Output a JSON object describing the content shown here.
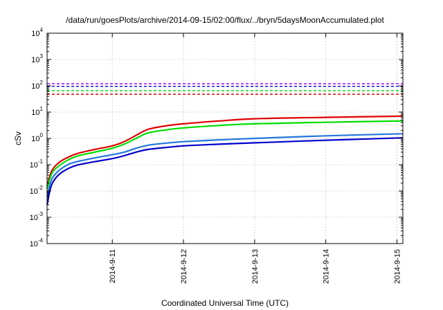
{
  "chart_data": {
    "type": "line",
    "title": "/data/run/goesPlots/archive/2014-09-15/02:00/flux/../bryn/5daysMoonAccumulated.plot",
    "xlabel": "Coordinated Universal Time (UTC)",
    "ylabel": "cSv",
    "yscale": "log",
    "ylim": [
      0.0001,
      10000
    ],
    "xlim": [
      "2014-09-10 02:00",
      "2014-09-15 02:00"
    ],
    "y_ticks": [
      {
        "base": "10",
        "exp": "-4"
      },
      {
        "base": "10",
        "exp": "-3"
      },
      {
        "base": "10",
        "exp": "-2"
      },
      {
        "base": "10",
        "exp": "-1"
      },
      {
        "base": "10",
        "exp": "0"
      },
      {
        "base": "10",
        "exp": "1"
      },
      {
        "base": "10",
        "exp": "2"
      },
      {
        "base": "10",
        "exp": "3"
      },
      {
        "base": "10",
        "exp": "4"
      }
    ],
    "x_ticks": [
      "2014-9-11",
      "2014-9-12",
      "2014-9-13",
      "2014-9-14",
      "2014-9-15"
    ],
    "grid": true,
    "thresholds": [
      {
        "color": "#a000ff",
        "value": 120
      },
      {
        "color": "#0000cc",
        "value": 95
      },
      {
        "color": "#00cc00",
        "value": 65
      },
      {
        "color": "#e00000",
        "value": 48
      }
    ],
    "series": [
      {
        "color": "#e00000",
        "x": [
          "2014-09-10 02:00",
          "2014-09-10 03:00",
          "2014-09-10 04:00",
          "2014-09-10 06:00",
          "2014-09-10 09:00",
          "2014-09-10 12:00",
          "2014-09-10 18:00",
          "2014-09-11 00:00",
          "2014-09-11 04:00",
          "2014-09-11 08:00",
          "2014-09-11 12:00",
          "2014-09-11 18:00",
          "2014-09-12 00:00",
          "2014-09-12 12:00",
          "2014-09-13 00:00",
          "2014-09-14 00:00",
          "2014-09-15 02:00"
        ],
        "values": [
          0.015,
          0.04,
          0.07,
          0.12,
          0.19,
          0.26,
          0.38,
          0.52,
          0.75,
          1.3,
          2.2,
          3.0,
          3.6,
          4.6,
          5.6,
          6.3,
          7.0
        ]
      },
      {
        "color": "#00dd00",
        "x": [
          "2014-09-10 02:00",
          "2014-09-10 03:00",
          "2014-09-10 04:00",
          "2014-09-10 06:00",
          "2014-09-10 09:00",
          "2014-09-10 12:00",
          "2014-09-10 18:00",
          "2014-09-11 00:00",
          "2014-09-11 04:00",
          "2014-09-11 08:00",
          "2014-09-11 12:00",
          "2014-09-11 18:00",
          "2014-09-12 00:00",
          "2014-09-12 12:00",
          "2014-09-13 00:00",
          "2014-09-14 00:00",
          "2014-09-15 02:00"
        ],
        "values": [
          0.012,
          0.03,
          0.055,
          0.09,
          0.15,
          0.21,
          0.3,
          0.42,
          0.6,
          1.0,
          1.6,
          2.1,
          2.5,
          3.1,
          3.6,
          4.1,
          4.6
        ]
      },
      {
        "color": "#2277dd",
        "x": [
          "2014-09-10 02:00",
          "2014-09-10 03:00",
          "2014-09-10 04:00",
          "2014-09-10 06:00",
          "2014-09-10 09:00",
          "2014-09-10 12:00",
          "2014-09-10 18:00",
          "2014-09-11 00:00",
          "2014-09-11 04:00",
          "2014-09-11 08:00",
          "2014-09-11 12:00",
          "2014-09-11 18:00",
          "2014-09-12 00:00",
          "2014-09-12 12:00",
          "2014-09-13 00:00",
          "2014-09-14 00:00",
          "2014-09-15 02:00"
        ],
        "values": [
          0.006,
          0.018,
          0.034,
          0.06,
          0.1,
          0.13,
          0.18,
          0.24,
          0.3,
          0.42,
          0.55,
          0.66,
          0.75,
          0.88,
          1.0,
          1.25,
          1.5
        ]
      },
      {
        "color": "#0000cc",
        "x": [
          "2014-09-10 02:00",
          "2014-09-10 03:00",
          "2014-09-10 04:00",
          "2014-09-10 06:00",
          "2014-09-10 09:00",
          "2014-09-10 12:00",
          "2014-09-10 18:00",
          "2014-09-11 00:00",
          "2014-09-11 04:00",
          "2014-09-11 08:00",
          "2014-09-11 12:00",
          "2014-09-11 18:00",
          "2014-09-12 00:00",
          "2014-09-12 12:00",
          "2014-09-13 00:00",
          "2014-09-14 00:00",
          "2014-09-15 02:00"
        ],
        "values": [
          0.003,
          0.011,
          0.022,
          0.042,
          0.07,
          0.095,
          0.13,
          0.17,
          0.22,
          0.3,
          0.38,
          0.45,
          0.52,
          0.6,
          0.68,
          0.85,
          1.05
        ]
      }
    ]
  }
}
